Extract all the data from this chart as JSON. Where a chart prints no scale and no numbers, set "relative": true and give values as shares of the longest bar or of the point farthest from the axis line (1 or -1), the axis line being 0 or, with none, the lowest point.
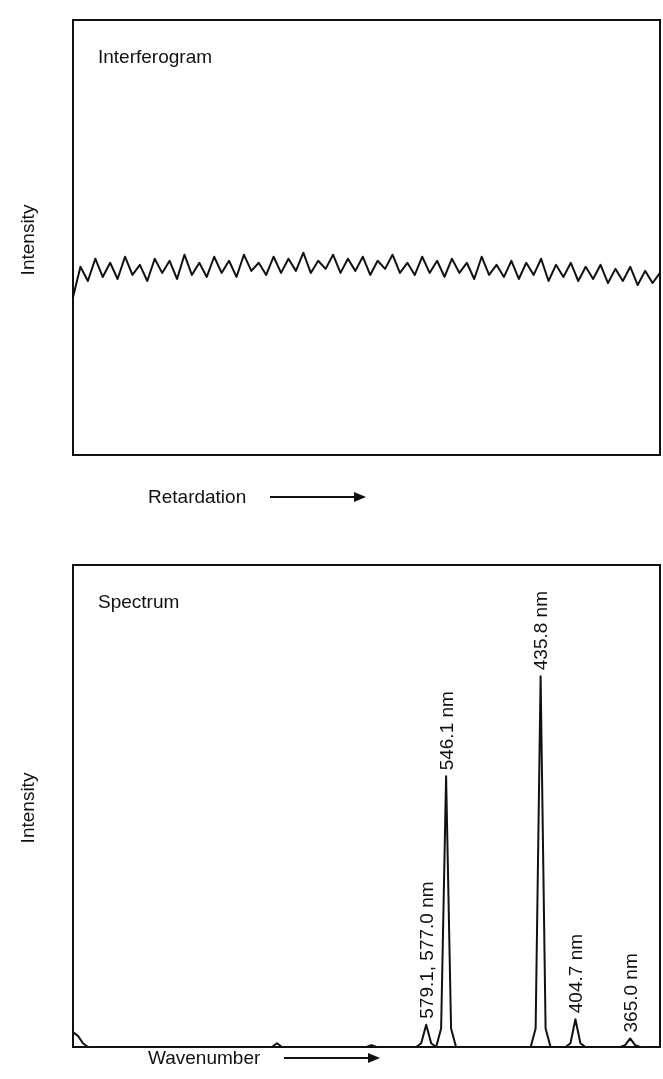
{
  "chart_data": [
    {
      "type": "line",
      "title": "Interferogram",
      "xlabel": "Retardation",
      "ylabel": "Intensity",
      "relative": true,
      "marker": "none",
      "categories": [
        null,
        null,
        null,
        null,
        null,
        null,
        null,
        null,
        null,
        null,
        null,
        null,
        null,
        null,
        null,
        null,
        null,
        null,
        null,
        null,
        null,
        null,
        null,
        null,
        null,
        null,
        null,
        null,
        null,
        null,
        null,
        null,
        null,
        null,
        null,
        null,
        null,
        null,
        null,
        null,
        null,
        null,
        null,
        null,
        null,
        null,
        null,
        null,
        null,
        null,
        null,
        null,
        null,
        null,
        null,
        null,
        null,
        null,
        null,
        null,
        null,
        null,
        null,
        null,
        null,
        null,
        null,
        null,
        null,
        null,
        null,
        null,
        null,
        null,
        null,
        null,
        null,
        null,
        null,
        null
      ],
      "series": [
        {
          "color": "#111111",
          "values": [
            0.78,
            0.93,
            0.86,
            0.97,
            0.88,
            0.95,
            0.87,
            0.98,
            0.89,
            0.94,
            0.86,
            0.97,
            0.9,
            0.96,
            0.87,
            0.99,
            0.89,
            0.95,
            0.88,
            0.98,
            0.9,
            0.96,
            0.88,
            0.99,
            0.91,
            0.95,
            0.89,
            0.98,
            0.9,
            0.97,
            0.91,
            1.0,
            0.9,
            0.96,
            0.92,
            0.99,
            0.9,
            0.97,
            0.91,
            0.98,
            0.89,
            0.96,
            0.92,
            0.99,
            0.9,
            0.95,
            0.89,
            0.98,
            0.9,
            0.96,
            0.88,
            0.97,
            0.9,
            0.95,
            0.87,
            0.98,
            0.89,
            0.94,
            0.88,
            0.96,
            0.87,
            0.95,
            0.89,
            0.97,
            0.86,
            0.94,
            0.88,
            0.95,
            0.86,
            0.93,
            0.87,
            0.94,
            0.85,
            0.92,
            0.86,
            0.93,
            0.84,
            0.91,
            0.85,
            0.9
          ]
        }
      ]
    },
    {
      "type": "line",
      "title": "Spectrum",
      "xlabel": "Wavenumber",
      "ylabel": "Intensity",
      "relative": true,
      "marker": "none",
      "annotations": [
        "579.1, 577.0 nm",
        "546.1 nm",
        "435.8 nm",
        "404.7 nm",
        "365.0 nm"
      ],
      "categories": [
        null,
        null,
        null,
        null,
        null,
        null,
        null,
        null,
        null,
        null,
        null,
        null,
        null,
        null,
        null,
        null,
        null,
        null,
        null,
        null,
        null,
        null,
        null,
        null,
        null,
        null,
        null,
        null,
        null,
        null,
        null,
        null,
        null,
        null,
        null,
        null,
        null,
        null,
        null,
        null,
        null,
        null,
        null,
        null,
        null,
        null,
        null,
        null,
        null,
        null,
        null,
        null,
        null,
        null,
        null,
        null,
        null,
        null,
        null,
        null,
        null,
        null,
        null,
        null,
        null,
        null,
        null,
        null,
        null,
        null,
        null,
        null,
        null,
        null,
        null,
        null,
        null,
        null,
        null,
        null,
        null,
        null,
        null,
        null,
        null,
        null,
        null,
        null,
        null,
        null,
        null,
        null,
        null,
        null,
        null,
        null,
        null,
        null,
        null,
        null,
        null,
        null,
        null,
        null,
        null,
        null,
        null,
        null,
        null,
        null,
        null,
        null,
        null,
        null,
        null,
        null,
        null,
        null,
        null
      ],
      "series": [
        {
          "color": "#111111",
          "values": [
            0.04,
            0.03,
            0.01,
            0,
            0,
            0,
            0,
            0,
            0,
            0,
            0,
            0,
            0,
            0,
            0,
            0,
            0,
            0,
            0,
            0,
            0,
            0,
            0,
            0,
            0,
            0,
            0,
            0,
            0,
            0,
            0,
            0,
            0,
            0,
            0,
            0,
            0,
            0,
            0,
            0,
            0,
            0.01,
            0,
            0,
            0,
            0,
            0,
            0,
            0,
            0,
            0,
            0,
            0,
            0,
            0,
            0,
            0,
            0,
            0,
            0,
            0.005,
            0,
            0,
            0,
            0,
            0,
            0,
            0,
            0,
            0,
            0.01,
            0.06,
            0.01,
            0,
            0.05,
            0.73,
            0.05,
            0,
            0,
            0,
            0,
            0,
            0,
            0,
            0,
            0,
            0,
            0,
            0,
            0,
            0,
            0,
            0,
            0.05,
            1,
            0.05,
            0,
            0,
            0,
            0,
            0.01,
            0.075,
            0.01,
            0,
            0,
            0,
            0,
            0,
            0,
            0,
            0,
            0.005,
            0.023,
            0.005,
            0,
            0,
            0,
            0,
            0
          ]
        }
      ]
    }
  ]
}
